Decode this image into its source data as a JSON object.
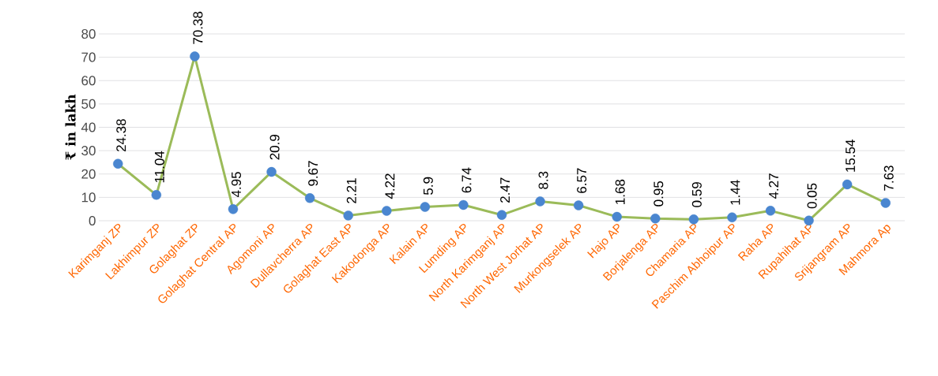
{
  "chart_data": {
    "type": "line",
    "ylabel": "₹ in lakh",
    "categories": [
      "Karimganj ZP",
      "Lakhimpur ZP",
      "Golaghat ZP",
      "Golaghat Central AP",
      "Agomoni AP",
      "Dullavcherra AP",
      "Golaghat East AP",
      "Kakodonga AP",
      "Kalain AP",
      "Lumding AP",
      "North Karimganj AP",
      "North West Jorhat AP",
      "Murkongselek AP",
      "Hajo AP",
      "Borjalenga AP",
      "Chamaria AP",
      "Paschim Abhoipur AP",
      "Raha AP",
      "Rupahihat AP",
      "Srijangram AP",
      "Mahmora Ap"
    ],
    "series": [
      {
        "color": "#9bbb59",
        "colors": [
          "#4a86d0",
          "#4a86d0",
          "#4a86d0",
          "#4a86d0",
          "#4a86d0",
          "#4a86d0",
          "#4a86d0",
          "#4a86d0",
          "#4a86d0",
          "#4a86d0",
          "#4a86d0",
          "#4a86d0",
          "#4a86d0",
          "#4a86d0",
          "#4a86d0",
          "#4a86d0",
          "#4a86d0",
          "#4a86d0",
          "#4a86d0",
          "#4a86d0",
          "#4a86d0"
        ],
        "values": [
          24.38,
          11.04,
          70.38,
          4.95,
          20.9,
          9.67,
          2.21,
          4.22,
          5.9,
          6.74,
          2.47,
          8.3,
          6.57,
          1.68,
          0.95,
          0.59,
          1.44,
          4.27,
          0.05,
          15.54,
          7.63
        ]
      }
    ],
    "ylim": [
      0,
      80
    ],
    "yticks": [
      0,
      10,
      20,
      30,
      40,
      50,
      60,
      70,
      80
    ],
    "grid": "y",
    "marker": "circle",
    "line_style": "solid",
    "data_labels": true
  }
}
